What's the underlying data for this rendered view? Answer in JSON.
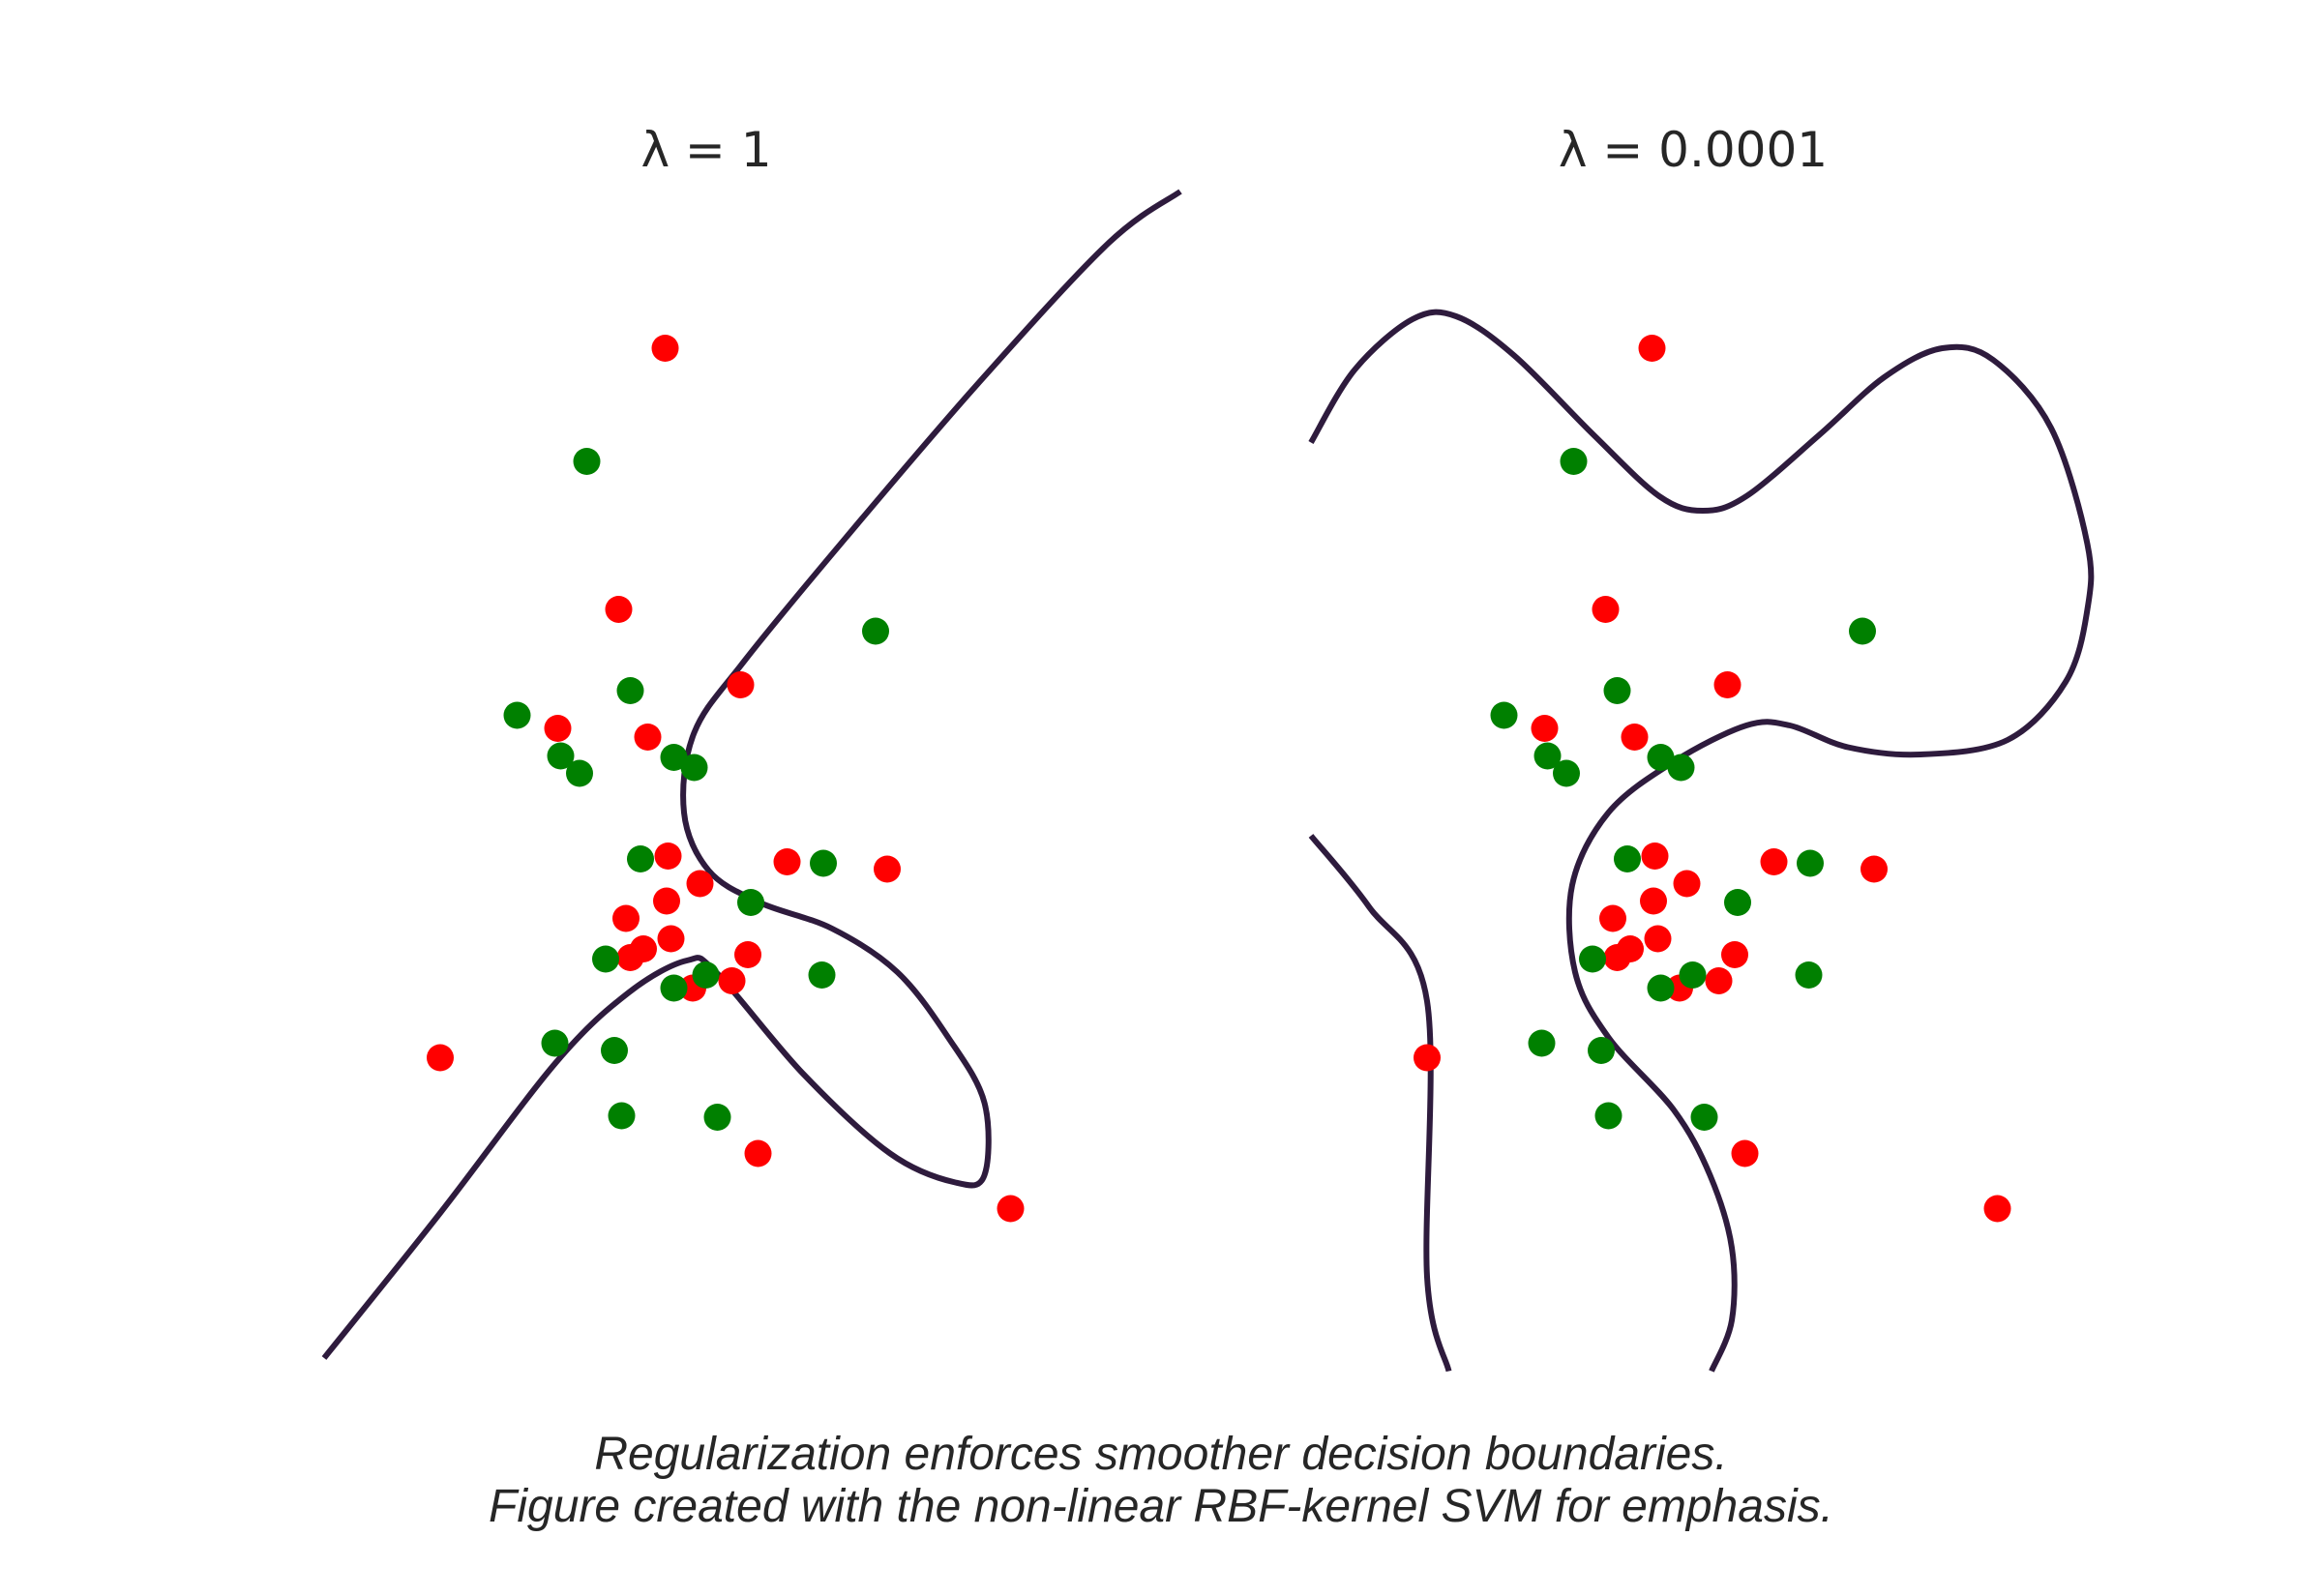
{
  "colors": {
    "class_red": "#ff0000",
    "class_green": "#008000",
    "boundary": "#2e1b3d"
  },
  "caption": {
    "line1": "Regularization enforces smoother decision boundaries.",
    "line2": "Figure created with the non-linear RBF-kernel SVM for emphasis."
  },
  "chart_data": [
    {
      "type": "scatter",
      "title": "λ = 1",
      "axes_visible": false,
      "grid": false,
      "legend": "none",
      "series": [
        {
          "color": "red",
          "points": [
            [
              305,
              240
            ],
            [
              273,
              420
            ],
            [
              231,
              502
            ],
            [
              293,
              508
            ],
            [
              357,
              472
            ],
            [
              307,
              590
            ],
            [
              306,
              621
            ],
            [
              329,
              609
            ],
            [
              278,
              633
            ],
            [
              309,
              647
            ],
            [
              281,
              660
            ],
            [
              290,
              654
            ],
            [
              362,
              658
            ],
            [
              351,
              676
            ],
            [
              324,
              681
            ],
            [
              389,
              594
            ],
            [
              458,
              599
            ],
            [
              150,
              729
            ],
            [
              369,
              795
            ],
            [
              543,
              833
            ]
          ]
        },
        {
          "color": "green",
          "points": [
            [
              251,
              318
            ],
            [
              450,
              435
            ],
            [
              281,
              476
            ],
            [
              203,
              493
            ],
            [
              233,
              521
            ],
            [
              246,
              533
            ],
            [
              311,
              522
            ],
            [
              325,
              529
            ],
            [
              288,
              592
            ],
            [
              364,
              622
            ],
            [
              414,
              595
            ],
            [
              264,
              661
            ],
            [
              333,
              672
            ],
            [
              311,
              681
            ],
            [
              413,
              672
            ],
            [
              229,
              719
            ],
            [
              270,
              724
            ],
            [
              275,
              769
            ],
            [
              341,
              770
            ]
          ]
        }
      ],
      "decision_boundary": {
        "segments": [
          [
            [
              70,
              936
            ],
            [
              150,
              836
            ],
            [
              230,
              732
            ],
            [
              280,
              684
            ],
            [
              320,
              662
            ],
            [
              340,
              670
            ],
            [
              400,
              740
            ],
            [
              460,
              795
            ],
            [
              505,
              815
            ],
            [
              525,
              810
            ],
            [
              525,
              760
            ],
            [
              500,
              715
            ],
            [
              465,
              670
            ],
            [
              420,
              640
            ],
            [
              370,
              622
            ],
            [
              335,
              600
            ],
            [
              318,
              560
            ],
            [
              325,
              505
            ],
            [
              360,
              455
            ],
            [
              430,
              370
            ],
            [
              520,
              265
            ],
            [
              610,
              168
            ],
            [
              660,
              132
            ]
          ]
        ]
      }
    },
    {
      "type": "scatter",
      "title": "λ = 0.0001",
      "axes_visible": false,
      "grid": false,
      "legend": "none",
      "series": [
        {
          "color": "red",
          "points": [
            [
              305,
              240
            ],
            [
              273,
              420
            ],
            [
              231,
              502
            ],
            [
              293,
              508
            ],
            [
              357,
              472
            ],
            [
              307,
              590
            ],
            [
              306,
              621
            ],
            [
              329,
              609
            ],
            [
              278,
              633
            ],
            [
              309,
              647
            ],
            [
              281,
              660
            ],
            [
              290,
              654
            ],
            [
              362,
              658
            ],
            [
              351,
              676
            ],
            [
              324,
              681
            ],
            [
              389,
              594
            ],
            [
              458,
              599
            ],
            [
              150,
              729
            ],
            [
              369,
              795
            ],
            [
              543,
              833
            ]
          ]
        },
        {
          "color": "green",
          "points": [
            [
              251,
              318
            ],
            [
              450,
              435
            ],
            [
              281,
              476
            ],
            [
              203,
              493
            ],
            [
              233,
              521
            ],
            [
              246,
              533
            ],
            [
              311,
              522
            ],
            [
              325,
              529
            ],
            [
              288,
              592
            ],
            [
              364,
              622
            ],
            [
              414,
              595
            ],
            [
              264,
              661
            ],
            [
              333,
              672
            ],
            [
              311,
              681
            ],
            [
              413,
              672
            ],
            [
              229,
              719
            ],
            [
              270,
              724
            ],
            [
              275,
              769
            ],
            [
              341,
              770
            ]
          ]
        }
      ],
      "decision_boundary": {
        "segments": [
          [
            [
              70,
              305
            ],
            [
              100,
              255
            ],
            [
              140,
              220
            ],
            [
              170,
              218
            ],
            [
              210,
              245
            ],
            [
              265,
              300
            ],
            [
              310,
              342
            ],
            [
              340,
              352
            ],
            [
              370,
              342
            ],
            [
              420,
              300
            ],
            [
              465,
              260
            ],
            [
              505,
              240
            ],
            [
              540,
              248
            ],
            [
              580,
              295
            ],
            [
              605,
              375
            ],
            [
              605,
              420
            ],
            [
              590,
              470
            ],
            [
              550,
              510
            ],
            [
              490,
              520
            ],
            [
              440,
              515
            ],
            [
              400,
              500
            ],
            [
              370,
              500
            ],
            [
              320,
              525
            ],
            [
              275,
              560
            ],
            [
              250,
              610
            ],
            [
              252,
              670
            ],
            [
              275,
              715
            ],
            [
              320,
              765
            ],
            [
              345,
              810
            ],
            [
              360,
              860
            ],
            [
              360,
              910
            ],
            [
              346,
              945
            ]
          ],
          [
            [
              70,
              576
            ],
            [
              110,
              625
            ],
            [
              150,
              690
            ],
            [
              150,
              880
            ],
            [
              165,
              945
            ]
          ]
        ]
      }
    }
  ]
}
